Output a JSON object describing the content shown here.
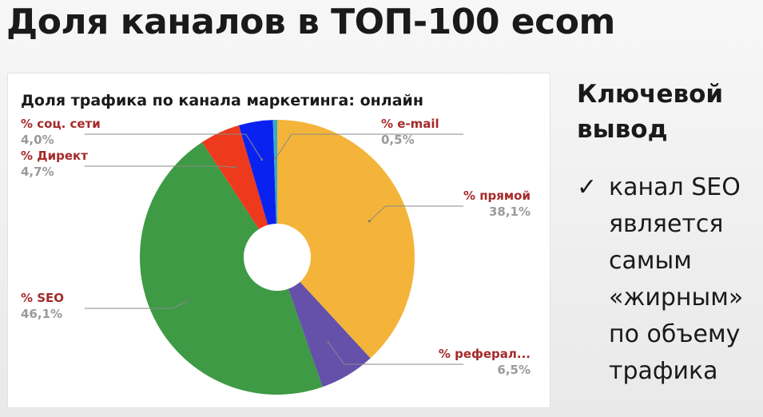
{
  "slide": {
    "title": "Доля каналов в ТОП-100 ecom"
  },
  "sidebar": {
    "heading": "Ключевой вывод",
    "check_icon": "✓",
    "conclusion": "канал SEO является самым «жирным» по объему трафика"
  },
  "colors": {
    "direct_traffic": "#f4b43a",
    "referral": "#6550aa",
    "seo": "#3e9a45",
    "context": "#ed3a1c",
    "social": "#0a22f0",
    "email": "#36a9c9",
    "label_name": "#a52a2a",
    "label_value": "#9a9a9a"
  },
  "chart_data": {
    "type": "pie",
    "donut": true,
    "title": "Доля трафика по канала маркетинга: онлайн",
    "start": "top",
    "direction": "clockwise",
    "slices": [
      {
        "key": "direct_traffic",
        "label": "% прямой",
        "value": 38.1,
        "value_label": "38,1%"
      },
      {
        "key": "referral",
        "label": "% реферал...",
        "value": 6.5,
        "value_label": "6,5%"
      },
      {
        "key": "seo",
        "label": "% SEO",
        "value": 46.1,
        "value_label": "46,1%"
      },
      {
        "key": "context",
        "label": "% Директ",
        "value": 4.7,
        "value_label": "4,7%"
      },
      {
        "key": "social",
        "label": "% соц. сети",
        "value": 4.0,
        "value_label": "4,0%"
      },
      {
        "key": "email",
        "label": "% e-mail",
        "value": 0.5,
        "value_label": "0,5%"
      }
    ]
  }
}
